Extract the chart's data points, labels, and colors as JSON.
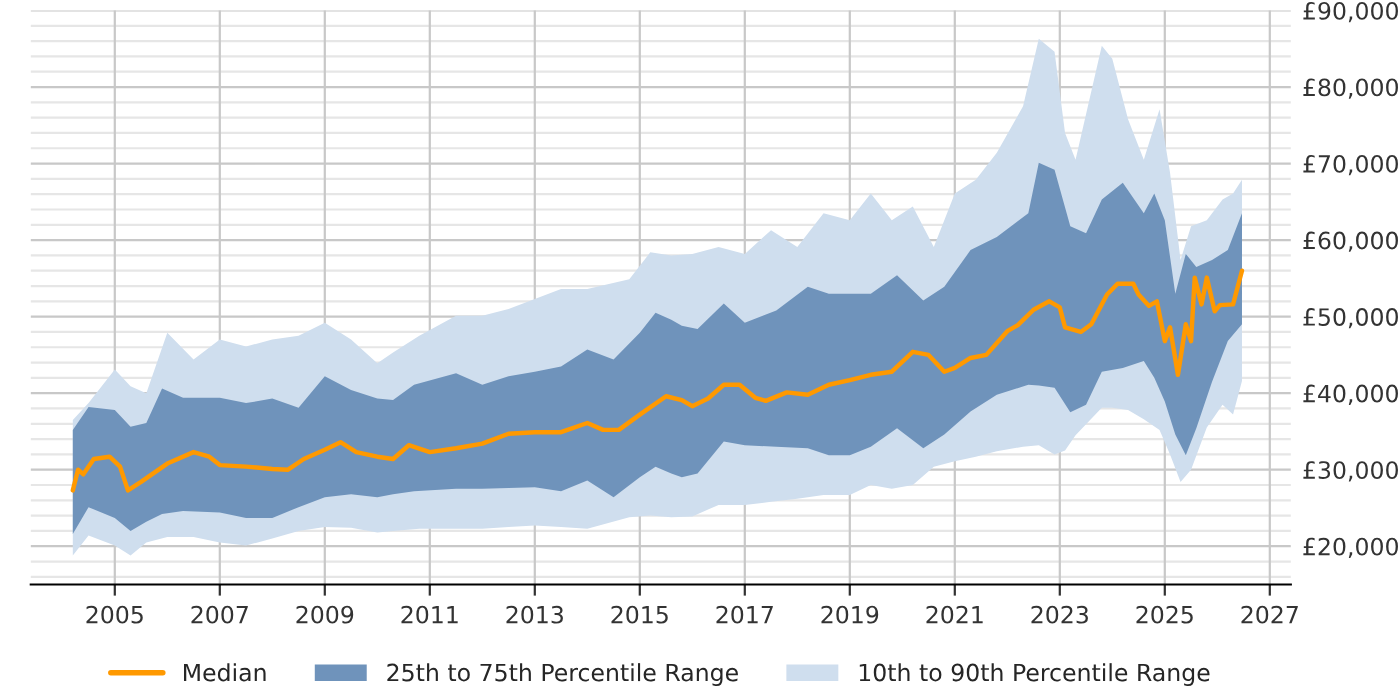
{
  "chart_data": {
    "type": "line",
    "xlim": [
      2003.4,
      2027.4
    ],
    "xticks": [
      2005,
      2007,
      2009,
      2011,
      2013,
      2015,
      2017,
      2019,
      2021,
      2023,
      2025,
      2027
    ],
    "ylim": [
      15000,
      90000
    ],
    "yticks": [
      {
        "value": 16000,
        "label": null
      },
      {
        "value": 18000,
        "label": null
      },
      {
        "value": 20000,
        "label": "£20,000"
      },
      {
        "value": 22000,
        "label": null
      },
      {
        "value": 24000,
        "label": null
      },
      {
        "value": 26000,
        "label": null
      },
      {
        "value": 28000,
        "label": null
      },
      {
        "value": 30000,
        "label": "£30,000"
      },
      {
        "value": 32000,
        "label": null
      },
      {
        "value": 34000,
        "label": null
      },
      {
        "value": 36000,
        "label": null
      },
      {
        "value": 38000,
        "label": null
      },
      {
        "value": 40000,
        "label": "£40,000"
      },
      {
        "value": 42000,
        "label": null
      },
      {
        "value": 44000,
        "label": null
      },
      {
        "value": 46000,
        "label": null
      },
      {
        "value": 48000,
        "label": null
      },
      {
        "value": 50000,
        "label": "£50,000"
      },
      {
        "value": 52000,
        "label": null
      },
      {
        "value": 54000,
        "label": null
      },
      {
        "value": 56000,
        "label": null
      },
      {
        "value": 58000,
        "label": null
      },
      {
        "value": 60000,
        "label": "£60,000"
      },
      {
        "value": 62000,
        "label": null
      },
      {
        "value": 64000,
        "label": null
      },
      {
        "value": 66000,
        "label": null
      },
      {
        "value": 68000,
        "label": null
      },
      {
        "value": 70000,
        "label": "£70,000"
      },
      {
        "value": 72000,
        "label": null
      },
      {
        "value": 74000,
        "label": null
      },
      {
        "value": 76000,
        "label": null
      },
      {
        "value": 78000,
        "label": null
      },
      {
        "value": 80000,
        "label": "£80,000"
      },
      {
        "value": 82000,
        "label": null
      },
      {
        "value": 84000,
        "label": null
      },
      {
        "value": 86000,
        "label": null
      },
      {
        "value": 88000,
        "label": null
      },
      {
        "value": 90000,
        "label": "£90,000"
      }
    ],
    "grid": true,
    "legend": "bottom",
    "series": [
      {
        "name": "Median",
        "color": "#ff9900",
        "x": [
          2004.2,
          2004.3,
          2004.4,
          2004.6,
          2004.9,
          2005.1,
          2005.25,
          2005.5,
          2006.0,
          2006.5,
          2006.8,
          2007.0,
          2007.5,
          2008.0,
          2008.3,
          2008.6,
          2009.0,
          2009.3,
          2009.6,
          2010.0,
          2010.3,
          2010.6,
          2011.0,
          2011.5,
          2012.0,
          2012.5,
          2013.0,
          2013.5,
          2014.0,
          2014.3,
          2014.6,
          2015.0,
          2015.5,
          2015.8,
          2016.0,
          2016.3,
          2016.6,
          2016.9,
          2017.2,
          2017.4,
          2017.8,
          2018.2,
          2018.6,
          2019.0,
          2019.4,
          2019.8,
          2020.2,
          2020.5,
          2020.8,
          2021.0,
          2021.3,
          2021.6,
          2022.0,
          2022.2,
          2022.5,
          2022.8,
          2023.0,
          2023.1,
          2023.4,
          2023.6,
          2023.9,
          2024.1,
          2024.4,
          2024.5,
          2024.7,
          2024.85,
          2025.0,
          2025.1,
          2025.25,
          2025.4,
          2025.5,
          2025.57,
          2025.7,
          2025.8,
          2025.95,
          2026.05,
          2026.3,
          2026.47
        ],
        "values": [
          27300,
          30000,
          29400,
          31400,
          31700,
          30400,
          27300,
          28400,
          30800,
          32300,
          31700,
          30600,
          30400,
          30100,
          30000,
          31400,
          32600,
          33600,
          32300,
          31700,
          31400,
          33200,
          32300,
          32800,
          33400,
          34700,
          34900,
          34900,
          36100,
          35200,
          35200,
          37200,
          39600,
          39100,
          38300,
          39300,
          41100,
          41100,
          39400,
          39000,
          40100,
          39800,
          41100,
          41700,
          42400,
          42800,
          45400,
          45000,
          42800,
          43300,
          44600,
          45000,
          48100,
          48900,
          50900,
          52000,
          51200,
          48600,
          48000,
          49000,
          52900,
          54300,
          54300,
          52900,
          51400,
          52000,
          46800,
          48600,
          42400,
          49000,
          46800,
          55100,
          51600,
          55100,
          50700,
          51500,
          51600,
          56000
        ]
      },
      {
        "name": "25th to 75th Percentile Range",
        "type": "area",
        "color": "#6f93bb",
        "x": [
          2004.2,
          2004.5,
          2005.0,
          2005.3,
          2005.6,
          2005.9,
          2006.3,
          2007.0,
          2007.5,
          2008.0,
          2008.5,
          2009.0,
          2009.5,
          2010.0,
          2010.3,
          2010.7,
          2011.5,
          2012.0,
          2012.5,
          2013.0,
          2013.5,
          2014.0,
          2014.5,
          2015.0,
          2015.3,
          2015.6,
          2015.8,
          2016.1,
          2016.6,
          2017.0,
          2017.6,
          2018.2,
          2018.6,
          2019.0,
          2019.4,
          2019.9,
          2020.4,
          2020.8,
          2021.3,
          2021.8,
          2022.4,
          2022.6,
          2022.9,
          2023.2,
          2023.5,
          2023.8,
          2024.2,
          2024.6,
          2024.8,
          2025.0,
          2025.2,
          2025.4,
          2025.6,
          2025.9,
          2026.2,
          2026.47
        ],
        "values": [
          null,
          null,
          null,
          null,
          null,
          null,
          null,
          null,
          null,
          null,
          null,
          null,
          null,
          null,
          null,
          null,
          null,
          null,
          null,
          null,
          null,
          null,
          null,
          null,
          null,
          null,
          null,
          null,
          null,
          null,
          null,
          null,
          null,
          null,
          null,
          null,
          null,
          null,
          null,
          null,
          null,
          null,
          null,
          null,
          null,
          null,
          null,
          null,
          null,
          null,
          null,
          null,
          null,
          null,
          null,
          null
        ],
        "upper": [
          35200,
          38200,
          37800,
          35600,
          36100,
          40600,
          39400,
          39400,
          38700,
          39300,
          38100,
          42200,
          40400,
          39300,
          39100,
          41100,
          42600,
          41100,
          42200,
          42800,
          43500,
          45700,
          44400,
          47900,
          50500,
          49600,
          48800,
          48400,
          51700,
          49200,
          50800,
          53900,
          53000,
          53000,
          53000,
          55400,
          52100,
          53900,
          58700,
          60400,
          63500,
          70100,
          69200,
          61800,
          60900,
          65300,
          67500,
          63500,
          66100,
          62600,
          53000,
          58200,
          56500,
          57400,
          58700,
          63500
        ],
        "lower": [
          21600,
          25100,
          23700,
          22000,
          23200,
          24200,
          24600,
          24400,
          23700,
          23700,
          25100,
          26400,
          26800,
          26400,
          26800,
          27200,
          27500,
          27500,
          27600,
          27700,
          27200,
          28600,
          26400,
          29000,
          30400,
          29500,
          29000,
          29500,
          33700,
          33200,
          33000,
          32800,
          31900,
          31900,
          33000,
          35400,
          32800,
          34600,
          37600,
          39800,
          41100,
          41000,
          40700,
          37500,
          38500,
          42800,
          43300,
          44200,
          42000,
          38900,
          34600,
          31900,
          35400,
          41500,
          46800,
          49000
        ]
      },
      {
        "name": "10th to 90th Percentile Range",
        "type": "area",
        "color": "#cfdeee",
        "x": [
          2004.2,
          2004.5,
          2005.0,
          2005.3,
          2005.6,
          2006.0,
          2006.5,
          2007.0,
          2007.5,
          2008.0,
          2008.5,
          2009.0,
          2009.5,
          2010.0,
          2010.3,
          2010.8,
          2011.5,
          2012.0,
          2012.5,
          2013.0,
          2013.5,
          2014.0,
          2014.8,
          2015.2,
          2015.6,
          2016.0,
          2016.5,
          2017.0,
          2017.5,
          2018.0,
          2018.5,
          2019.0,
          2019.4,
          2019.8,
          2020.2,
          2020.6,
          2021.0,
          2021.4,
          2021.8,
          2022.3,
          2022.6,
          2022.9,
          2023.1,
          2023.3,
          2023.8,
          2024.0,
          2024.3,
          2024.6,
          2024.9,
          2025.1,
          2025.3,
          2025.5,
          2025.8,
          2026.1,
          2026.3,
          2026.47
        ],
        "values": [
          null,
          null,
          null,
          null,
          null,
          null,
          null,
          null,
          null,
          null,
          null,
          null,
          null,
          null,
          null,
          null,
          null,
          null,
          null,
          null,
          null,
          null,
          null,
          null,
          null,
          null,
          null,
          null,
          null,
          null,
          null,
          null,
          null,
          null,
          null,
          null,
          null,
          null,
          null,
          null,
          null,
          null,
          null,
          null,
          null,
          null,
          null,
          null,
          null,
          null,
          null,
          null,
          null,
          null,
          null,
          null
        ],
        "upper": [
          36500,
          38700,
          43100,
          40900,
          40000,
          47900,
          44400,
          47000,
          46100,
          47000,
          47500,
          49200,
          47000,
          43900,
          45300,
          47500,
          50100,
          50100,
          51000,
          52300,
          53600,
          53600,
          54900,
          58400,
          58000,
          58200,
          59100,
          58200,
          61300,
          59100,
          63500,
          62600,
          66100,
          62600,
          64400,
          59100,
          66100,
          67900,
          71400,
          77500,
          86300,
          84600,
          74000,
          70500,
          85400,
          83700,
          75800,
          70500,
          77100,
          68800,
          57400,
          61800,
          62600,
          65300,
          66100,
          67900
        ],
        "lower": [
          18800,
          21400,
          20100,
          18800,
          20500,
          21200,
          21200,
          20500,
          20100,
          21000,
          22000,
          22500,
          22400,
          21800,
          22000,
          22300,
          22300,
          22300,
          22500,
          22700,
          22500,
          22300,
          23800,
          24000,
          23800,
          23900,
          25400,
          25400,
          25800,
          26200,
          26700,
          26700,
          28000,
          27500,
          28000,
          30400,
          31100,
          31700,
          32400,
          33000,
          33200,
          32000,
          32500,
          34500,
          38100,
          38100,
          37800,
          36600,
          35200,
          32000,
          28400,
          30000,
          35500,
          38500,
          37200,
          41600
        ]
      }
    ]
  }
}
